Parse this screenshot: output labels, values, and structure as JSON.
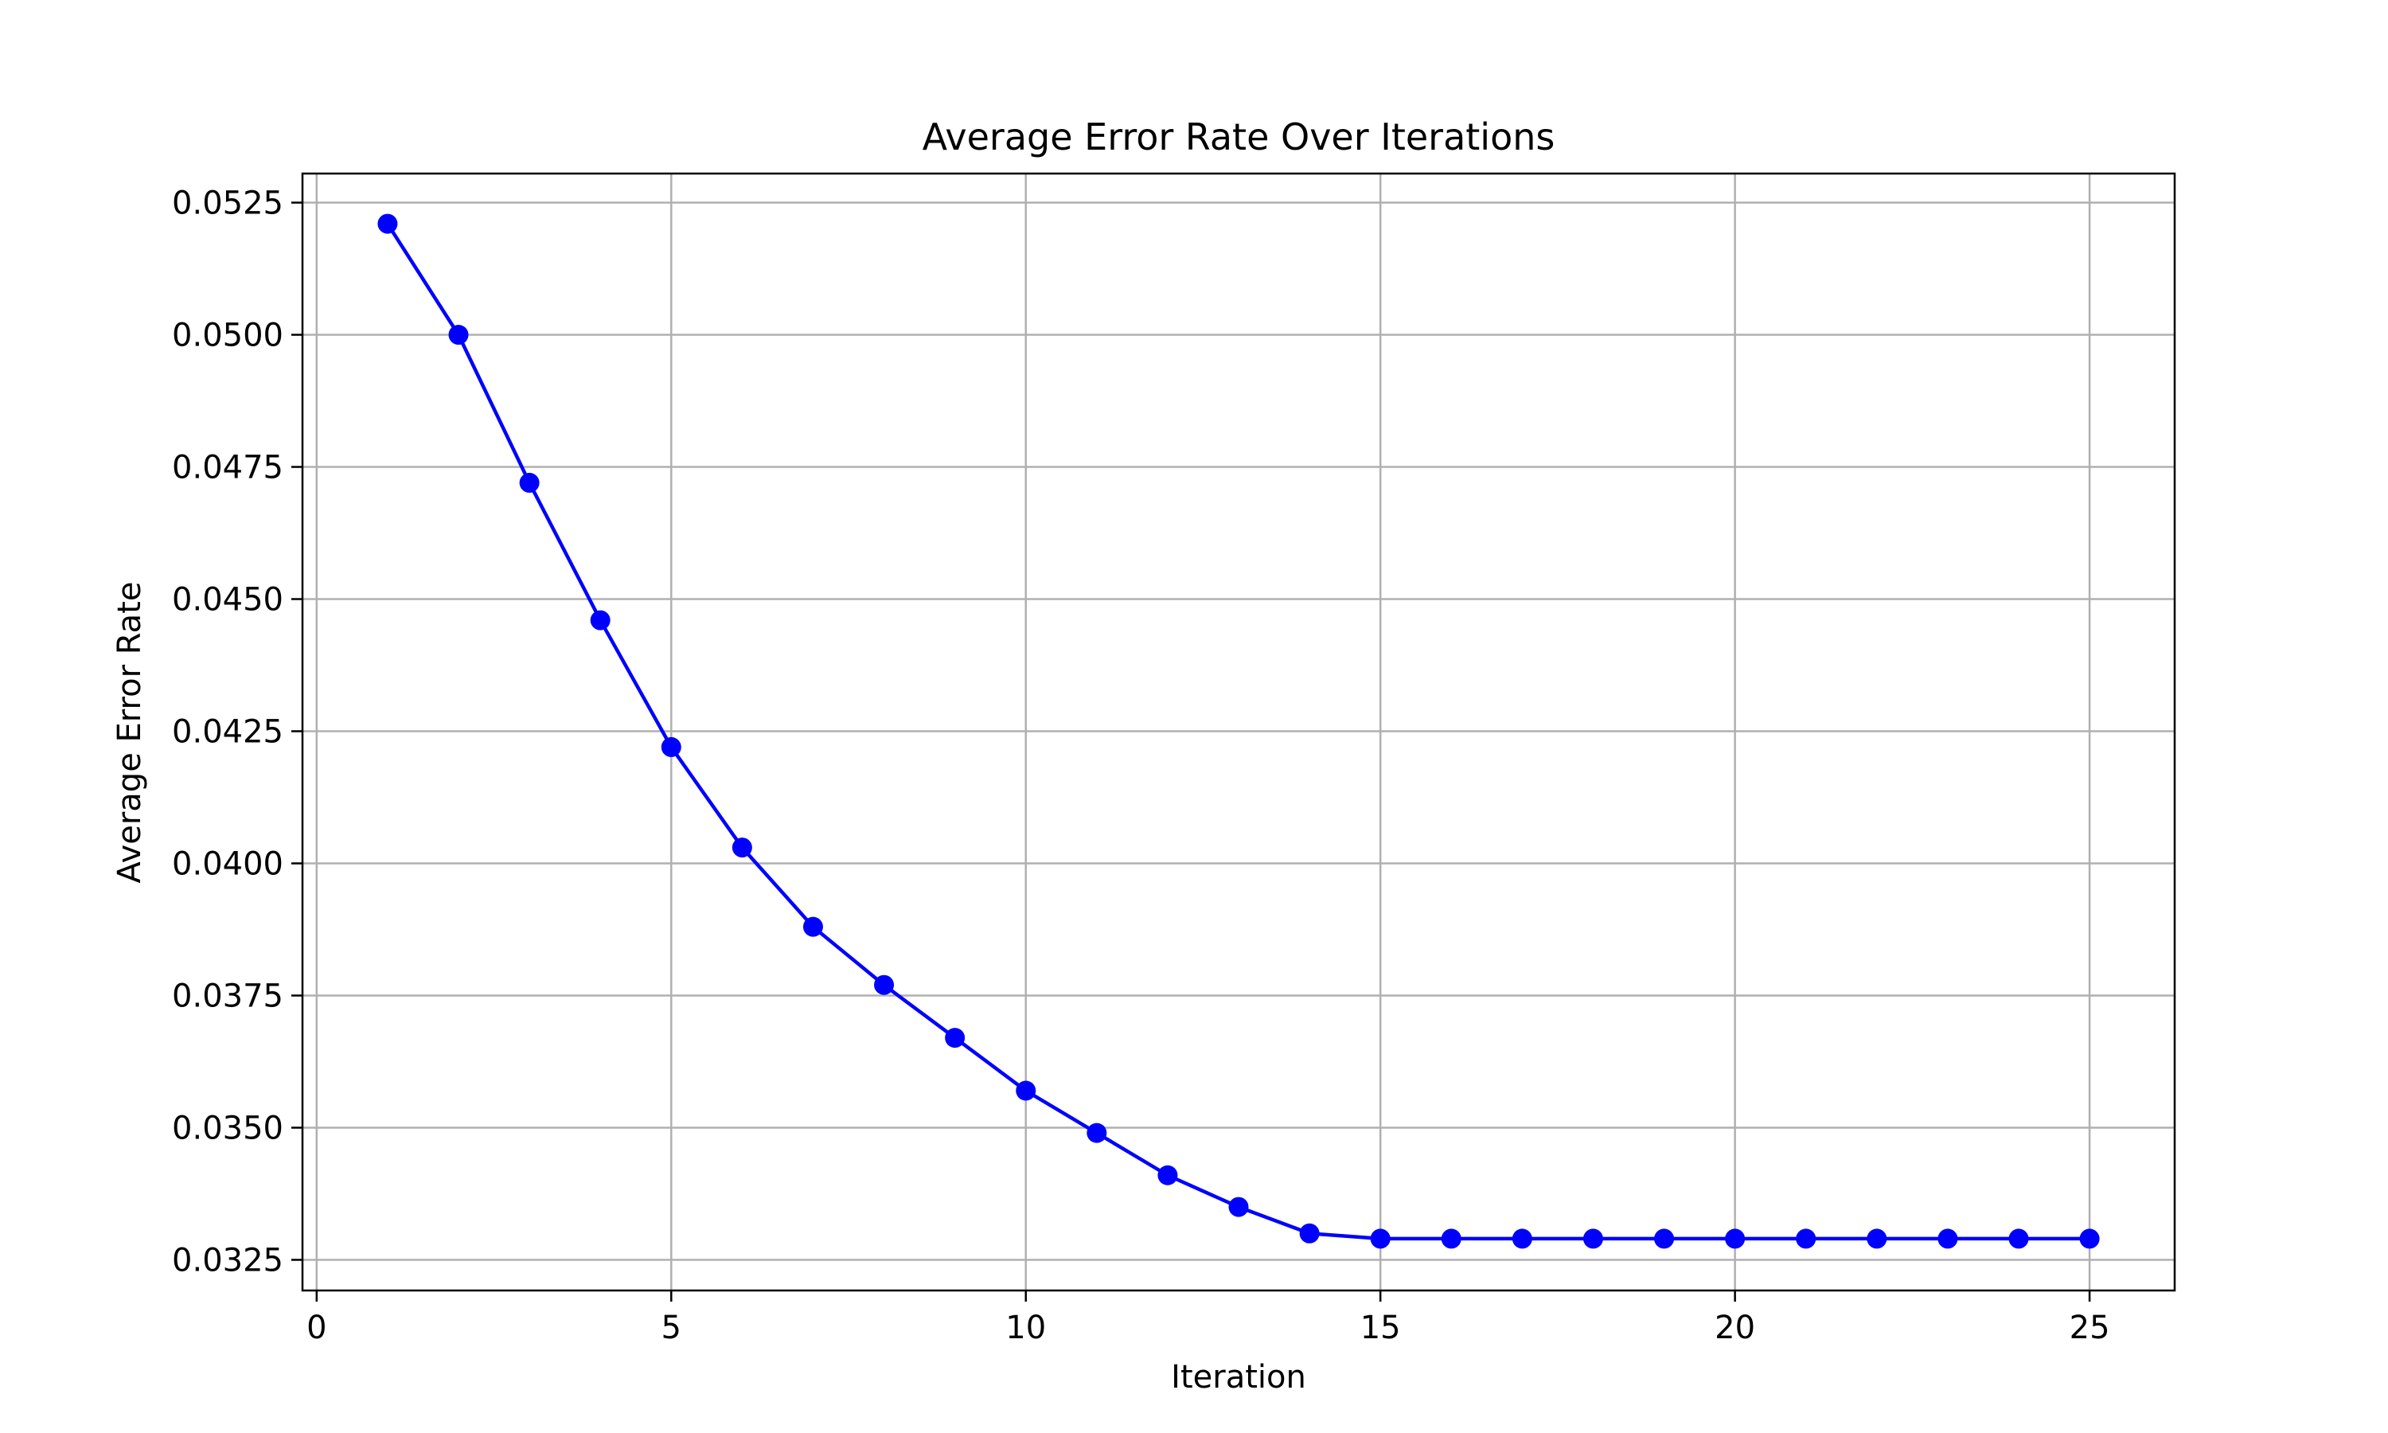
{
  "chart_data": {
    "type": "line",
    "title": "Average Error Rate Over Iterations",
    "xlabel": "Iteration",
    "ylabel": "Average Error Rate",
    "xlim": [
      -0.2,
      26.2
    ],
    "ylim": [
      0.03192,
      0.05305
    ],
    "xticks": [
      0,
      5,
      10,
      15,
      20,
      25
    ],
    "xtick_labels": [
      "0",
      "5",
      "10",
      "15",
      "20",
      "25"
    ],
    "yticks": [
      0.0325,
      0.035,
      0.0375,
      0.04,
      0.0425,
      0.045,
      0.0475,
      0.05,
      0.0525
    ],
    "ytick_labels": [
      "0.0325",
      "0.0350",
      "0.0375",
      "0.0400",
      "0.0425",
      "0.0450",
      "0.0475",
      "0.0500",
      "0.0525"
    ],
    "grid": true,
    "series": [
      {
        "color": "#0000ff",
        "marker": "circle",
        "x": [
          1,
          2,
          3,
          4,
          5,
          6,
          7,
          8,
          9,
          10,
          11,
          12,
          13,
          14,
          15,
          16,
          17,
          18,
          19,
          20,
          21,
          22,
          23,
          24,
          25
        ],
        "y": [
          0.0521,
          0.05,
          0.0472,
          0.0446,
          0.0422,
          0.0403,
          0.0388,
          0.0377,
          0.0367,
          0.0357,
          0.0349,
          0.0341,
          0.0335,
          0.033,
          0.0329,
          0.0329,
          0.0329,
          0.0329,
          0.0329,
          0.0329,
          0.0329,
          0.0329,
          0.0329,
          0.0329,
          0.0329
        ]
      }
    ]
  }
}
